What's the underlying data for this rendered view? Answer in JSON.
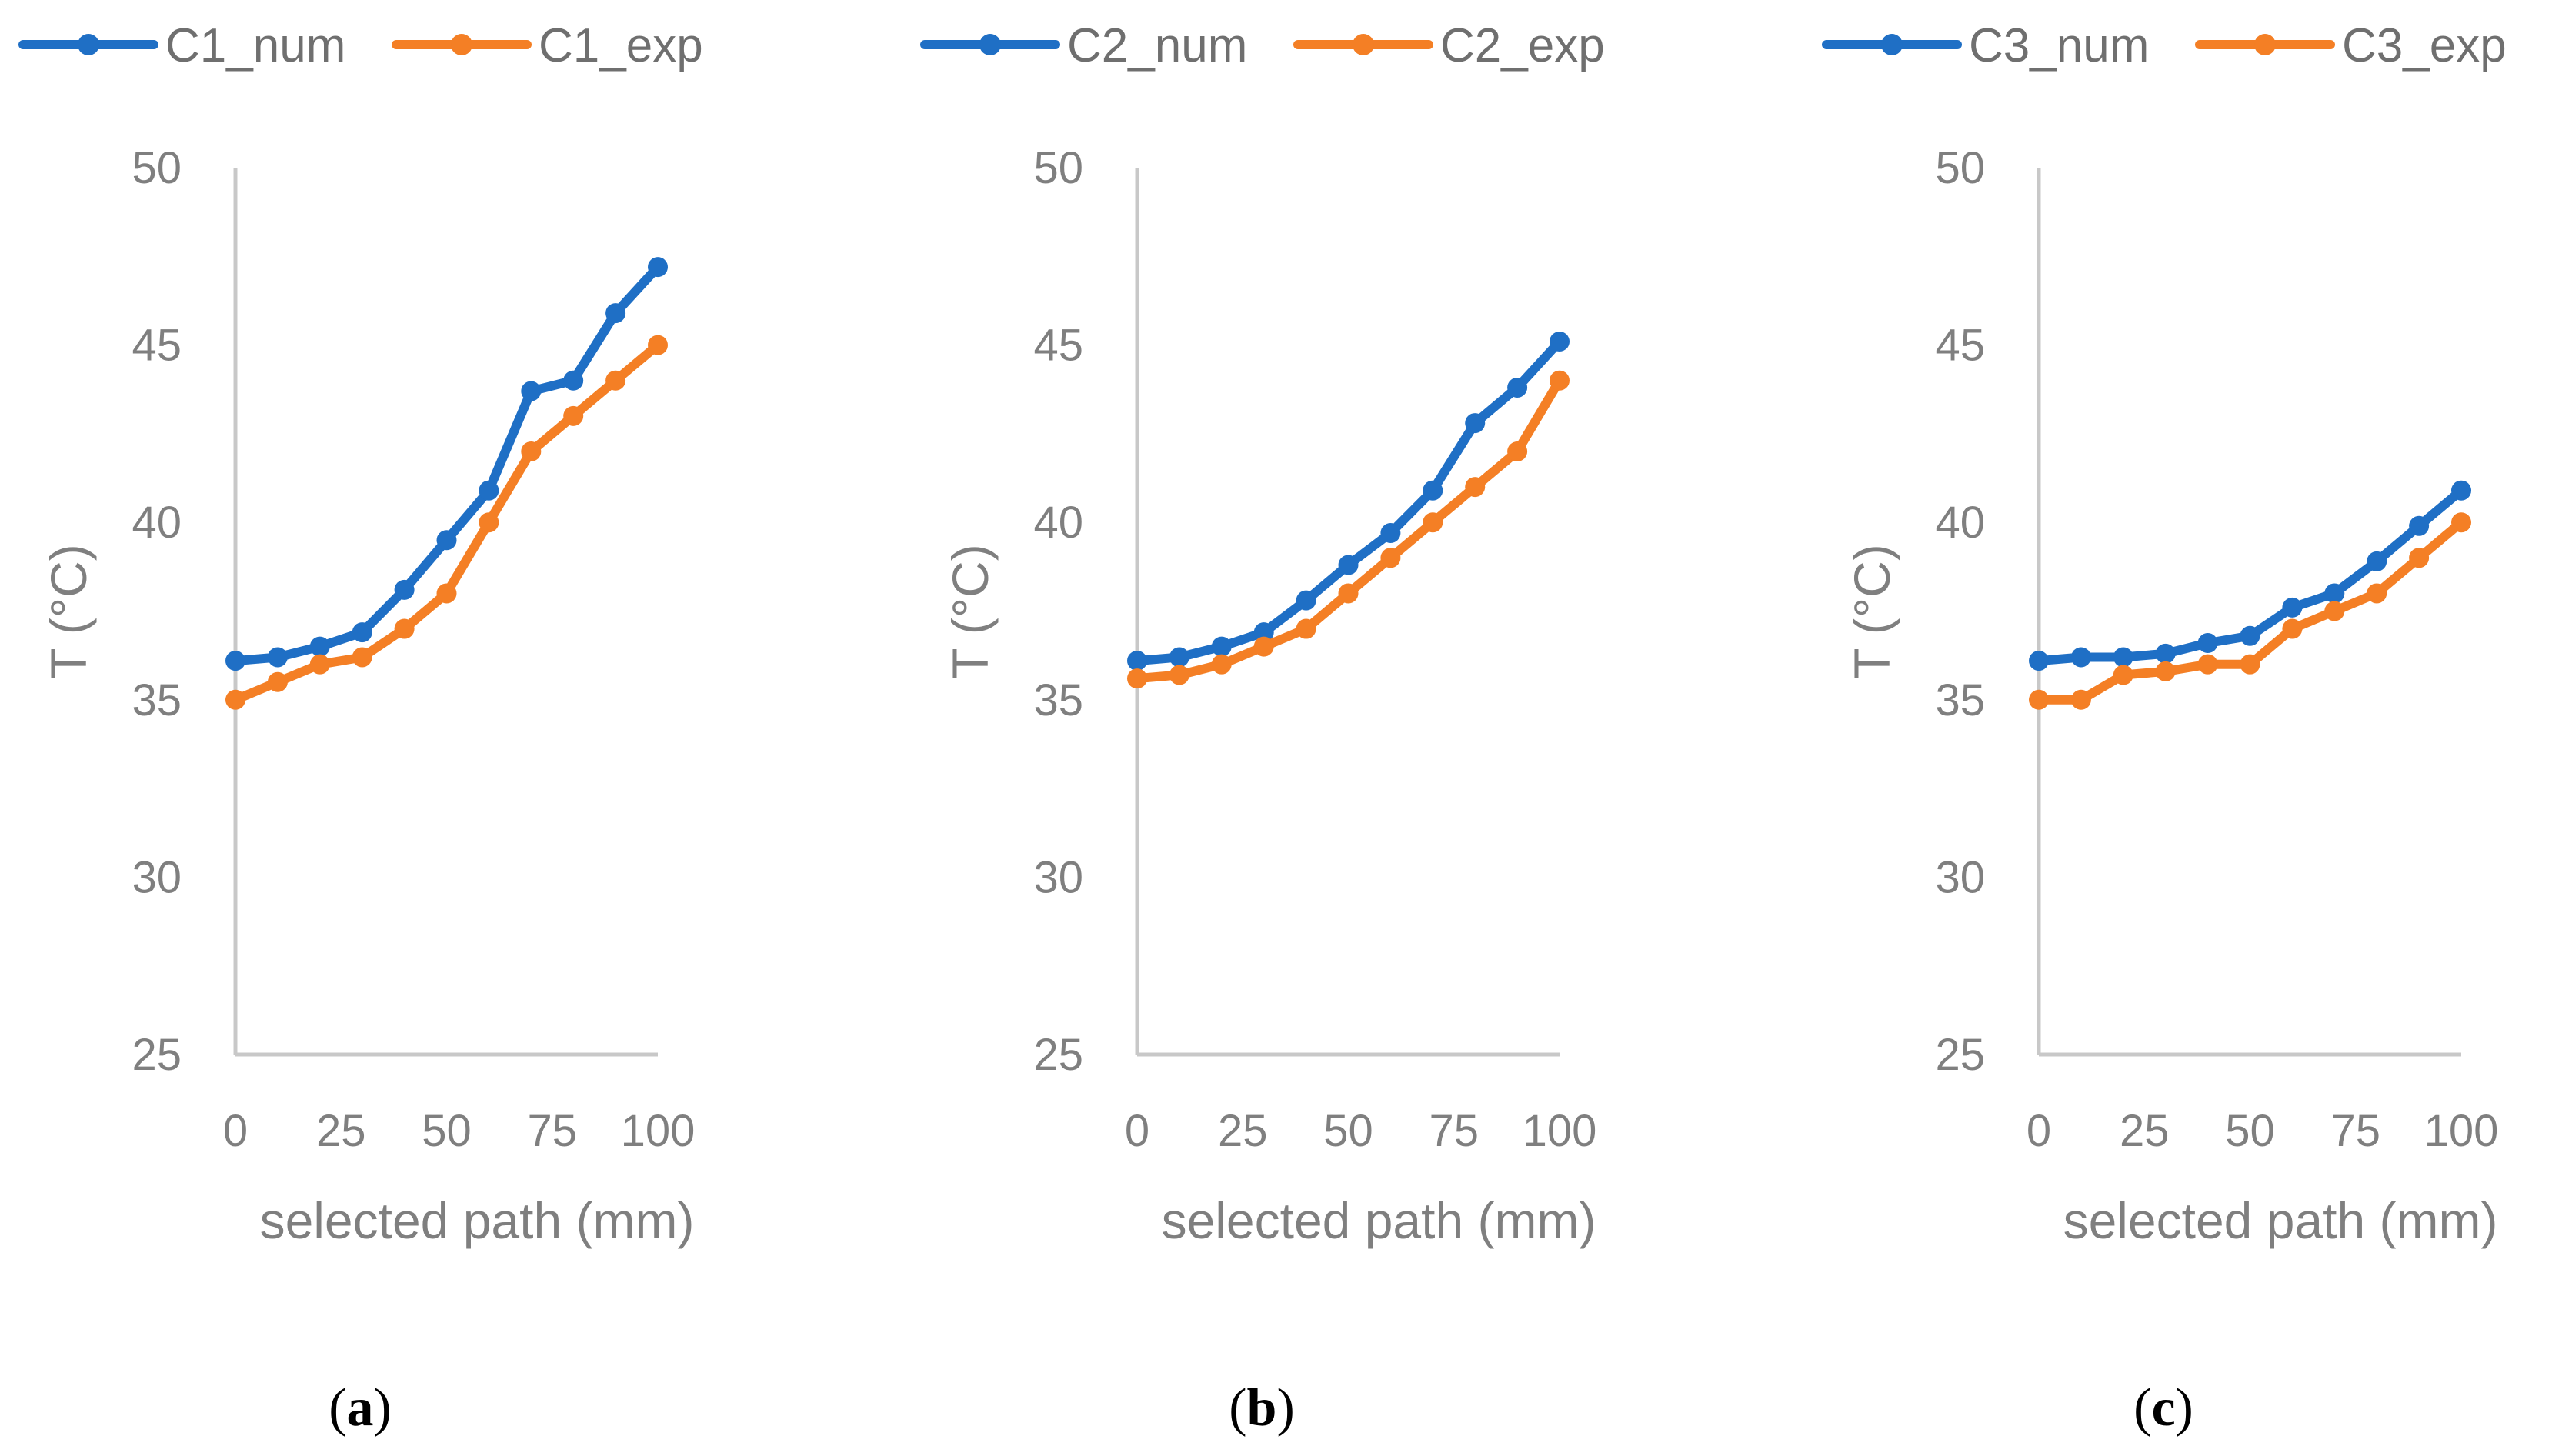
{
  "chart_data": [
    {
      "type": "line",
      "panel_label": "a",
      "xlabel": "selected path (mm)",
      "ylabel": "T (°C)",
      "xlim": [
        0,
        100
      ],
      "ylim": [
        25,
        50
      ],
      "x_ticks": [
        "0",
        "25",
        "50",
        "75",
        "100"
      ],
      "y_ticks": [
        "25",
        "30",
        "35",
        "40",
        "45",
        "50"
      ],
      "x": [
        0,
        10,
        20,
        30,
        40,
        50,
        60,
        70,
        80,
        90,
        100
      ],
      "series": [
        {
          "name": "C1_num",
          "color": "#1f6fc5",
          "values": [
            36.1,
            36.2,
            36.5,
            36.9,
            38.1,
            39.5,
            40.9,
            43.7,
            44.0,
            45.9,
            47.2
          ]
        },
        {
          "name": "C1_exp",
          "color": "#f47f25",
          "values": [
            35.0,
            35.5,
            36.0,
            36.2,
            37.0,
            38.0,
            40.0,
            42.0,
            43.0,
            44.0,
            45.0
          ]
        }
      ],
      "legend_position": "top"
    },
    {
      "type": "line",
      "panel_label": "b",
      "xlabel": "selected path (mm)",
      "ylabel": "T (°C)",
      "xlim": [
        0,
        100
      ],
      "ylim": [
        25,
        50
      ],
      "x_ticks": [
        "0",
        "25",
        "50",
        "75",
        "100"
      ],
      "y_ticks": [
        "25",
        "30",
        "35",
        "40",
        "45",
        "50"
      ],
      "x": [
        0,
        10,
        20,
        30,
        40,
        50,
        60,
        70,
        80,
        90,
        100
      ],
      "series": [
        {
          "name": "C2_num",
          "color": "#1f6fc5",
          "values": [
            36.1,
            36.2,
            36.5,
            36.9,
            37.8,
            38.8,
            39.7,
            40.9,
            42.8,
            43.8,
            45.1
          ]
        },
        {
          "name": "C2_exp",
          "color": "#f47f25",
          "values": [
            35.6,
            35.7,
            36.0,
            36.5,
            37.0,
            38.0,
            39.0,
            40.0,
            41.0,
            42.0,
            44.0
          ]
        }
      ],
      "legend_position": "top"
    },
    {
      "type": "line",
      "panel_label": "c",
      "xlabel": "selected path (mm)",
      "ylabel": "T (°C)",
      "xlim": [
        0,
        100
      ],
      "ylim": [
        25,
        50
      ],
      "x_ticks": [
        "0",
        "25",
        "50",
        "75",
        "100"
      ],
      "y_ticks": [
        "25",
        "30",
        "35",
        "40",
        "45",
        "50"
      ],
      "x": [
        0,
        10,
        20,
        30,
        40,
        50,
        60,
        70,
        80,
        90,
        100
      ],
      "series": [
        {
          "name": "C3_num",
          "color": "#1f6fc5",
          "values": [
            36.1,
            36.2,
            36.2,
            36.3,
            36.6,
            36.8,
            37.6,
            38.0,
            38.9,
            39.9,
            40.9
          ]
        },
        {
          "name": "C3_exp",
          "color": "#f47f25",
          "values": [
            35.0,
            35.0,
            35.7,
            35.8,
            36.0,
            36.0,
            37.0,
            37.5,
            38.0,
            39.0,
            40.0
          ]
        }
      ],
      "legend_position": "top"
    }
  ]
}
